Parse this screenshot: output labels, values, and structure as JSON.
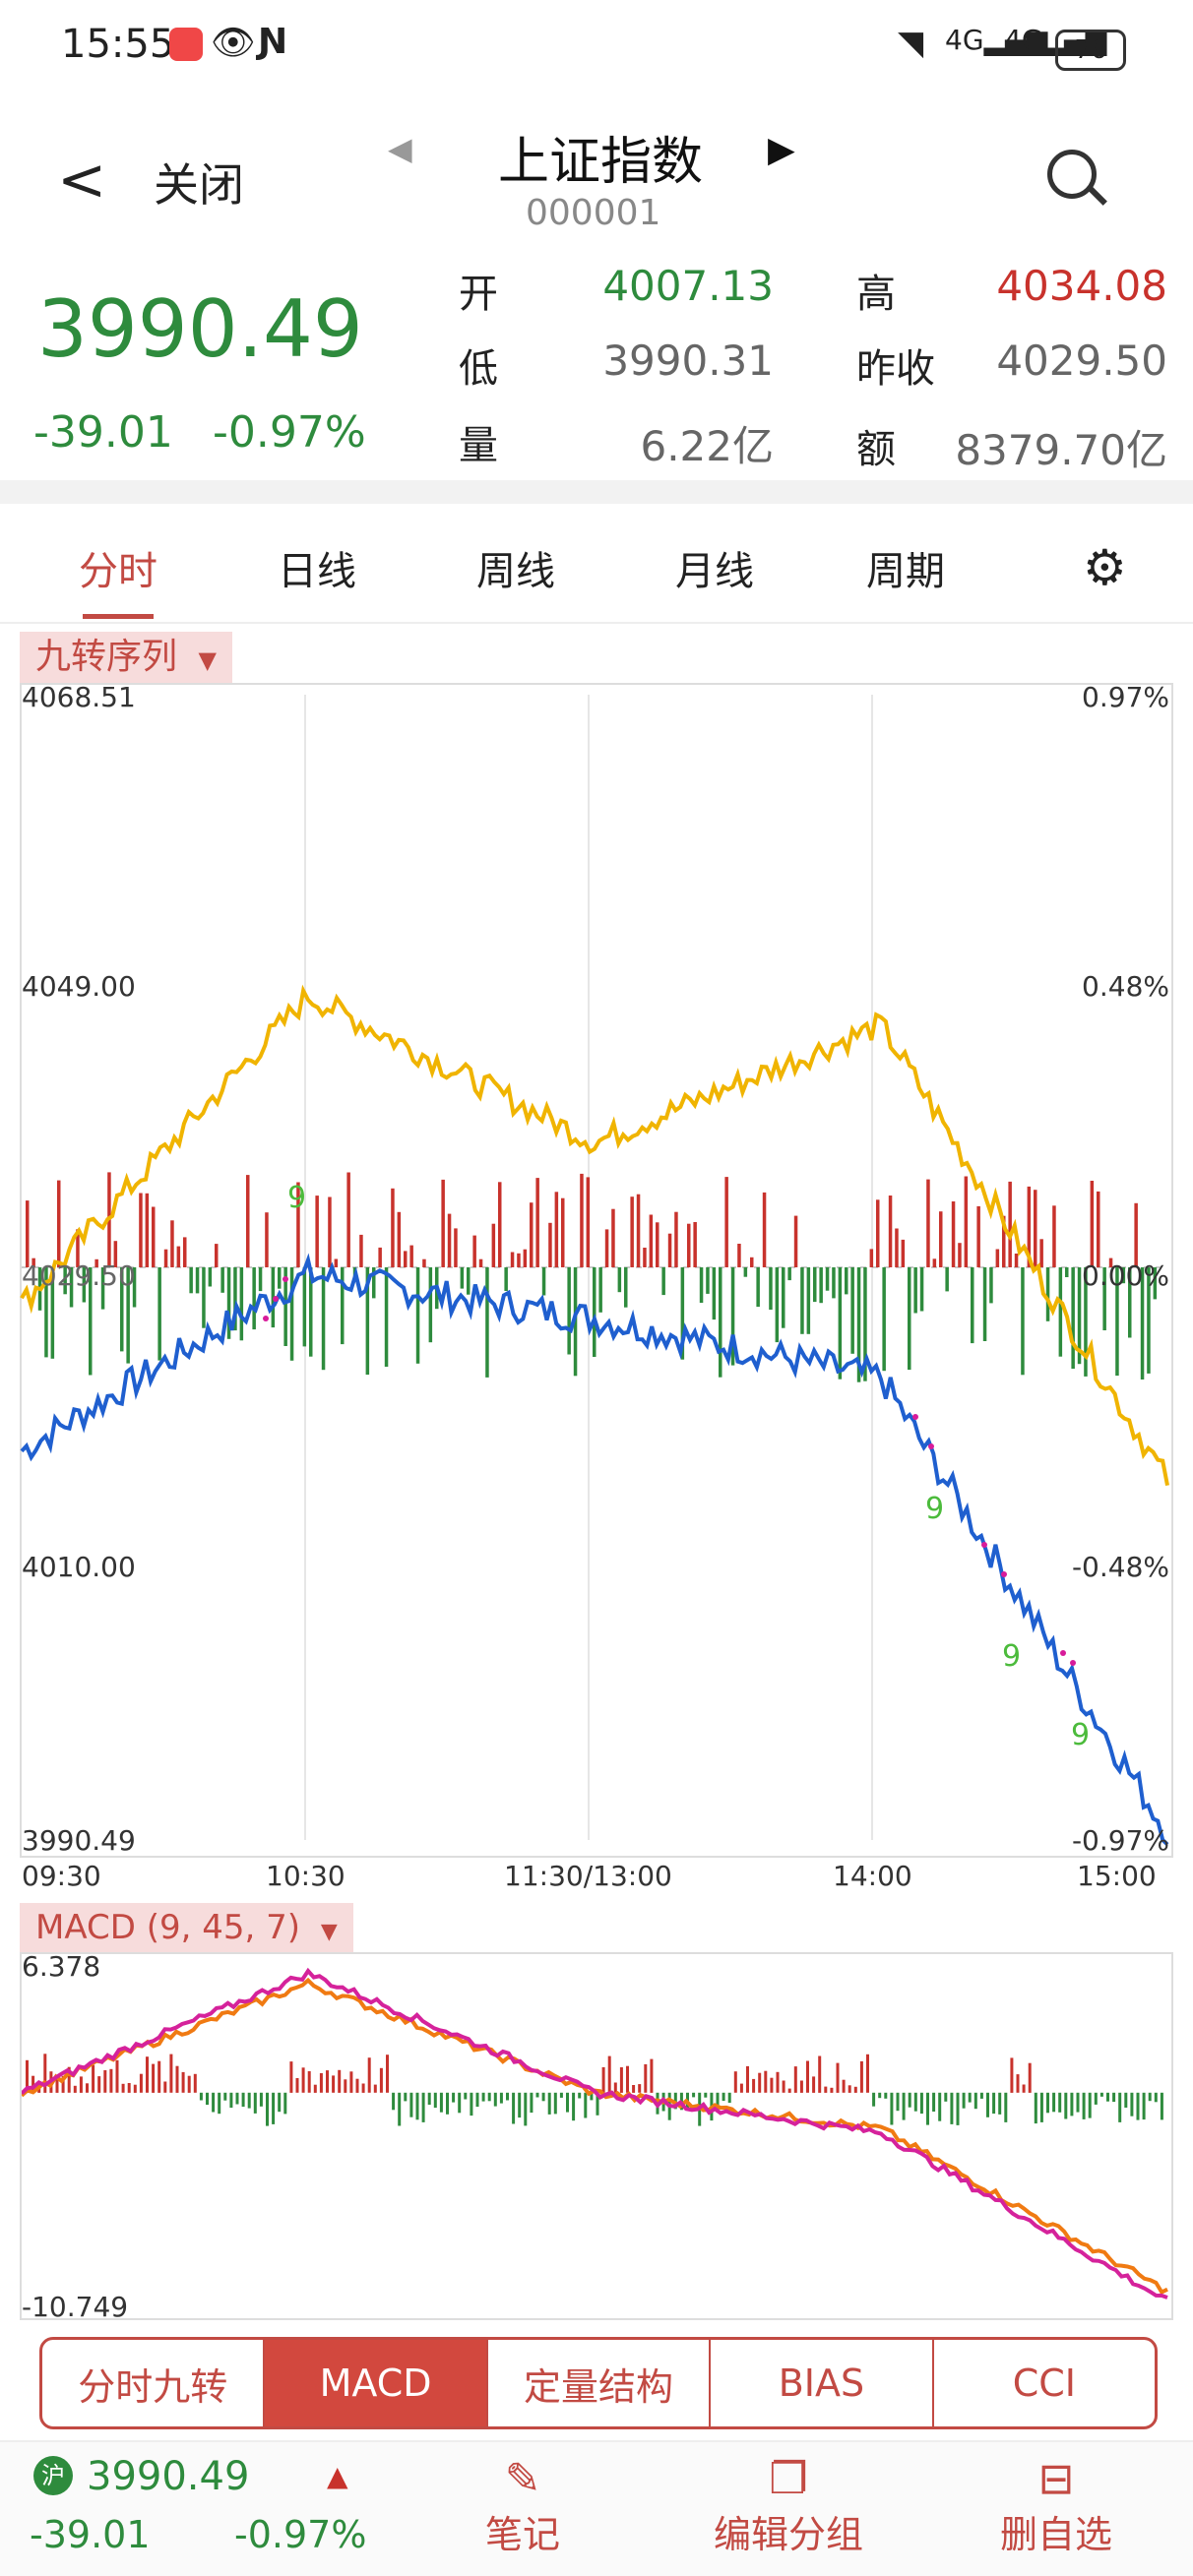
{
  "status_bar": {
    "time": "15:55",
    "battery": "76"
  },
  "header": {
    "back_label": "关闭",
    "title": "上证指数",
    "code": "000001"
  },
  "quote": {
    "price": "3990.49",
    "change": "-39.01",
    "change_pct": "-0.97%",
    "rows": [
      {
        "l1": "开",
        "v1": "4007.13",
        "c1": "green",
        "l2": "高",
        "v2": "4034.08",
        "c2": "red"
      },
      {
        "l1": "低",
        "v1": "3990.31",
        "c1": "gray",
        "l2": "昨收",
        "v2": "4029.50",
        "c2": "gray"
      },
      {
        "l1": "量",
        "v1": "6.22亿",
        "c1": "gray",
        "l2": "额",
        "v2": "8379.70亿",
        "c2": "gray"
      }
    ]
  },
  "tabs": [
    "分时",
    "日线",
    "周线",
    "月线",
    "周期"
  ],
  "main_chart": {
    "indicator_label": "九转序列",
    "y_labels_left": [
      "4068.51",
      "4049.00",
      "4029.50",
      "4010.00",
      "3990.49"
    ],
    "y_labels_right": [
      "0.97%",
      "0.48%",
      "0.00%",
      "-0.48%",
      "-0.97%"
    ],
    "x_labels": [
      "09:30",
      "10:30",
      "11:30/13:00",
      "14:00",
      "15:00"
    ],
    "nine_marks": [
      "9",
      "9",
      "9",
      "9"
    ]
  },
  "macd_chart": {
    "label": "MACD (9, 45, 7)",
    "y_max": "6.378",
    "y_min": "-10.749"
  },
  "chart_data": [
    {
      "type": "line",
      "title": "",
      "x": [
        "09:30",
        "10:30",
        "11:30/13:00",
        "14:00",
        "15:00"
      ],
      "ylim": [
        3990.49,
        4068.51
      ],
      "series": [
        {
          "values": [
            4017,
            4029,
            4026,
            4022,
            3991
          ]
        },
        {
          "values": [
            4027,
            4048,
            4038,
            4046,
            4015
          ]
        }
      ]
    },
    {
      "type": "line",
      "title": "",
      "ylim": [
        -10.749,
        6.378
      ],
      "series": [
        {
          "values": [
            0,
            6,
            0,
            -2,
            -10.5
          ]
        },
        {
          "values": [
            0,
            5.5,
            0,
            -1.8,
            -10
          ]
        }
      ]
    }
  ],
  "bottom_tabs": [
    "分时九转",
    "MACD",
    "定量结构",
    "BIAS",
    "CCI"
  ],
  "footer": {
    "market": "沪",
    "price": "3990.49",
    "change": "-39.01",
    "change_pct": "-0.97%",
    "items": [
      "笔记",
      "编辑分组",
      "删自选"
    ]
  },
  "colors": {
    "up": "#c8322c",
    "down": "#2e8b3d",
    "price_line": "#1f5fcf",
    "avg_line": "#f0b400",
    "macd_dif": "#d5229b",
    "macd_dea": "#f07a12",
    "accent": "#c24a43"
  }
}
